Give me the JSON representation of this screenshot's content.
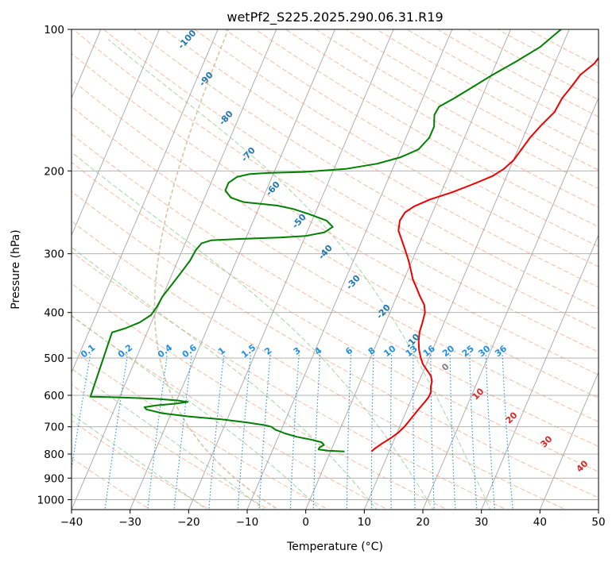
{
  "chart_data": {
    "type": "line",
    "title": "wetPf2_S225.2025.290.06.31.R19",
    "xlabel": "Temperature (°C)",
    "ylabel": "Pressure (hPa)",
    "xlim": [
      -40,
      50
    ],
    "ylim": [
      1050,
      100
    ],
    "y_scale": "log",
    "x_ticks": [
      -40,
      -30,
      -20,
      -10,
      0,
      10,
      20,
      30,
      40,
      50
    ],
    "x_tick_labels": [
      "−40",
      "−30",
      "−20",
      "−10",
      "0",
      "10",
      "20",
      "30",
      "40",
      "50"
    ],
    "y_ticks": [
      1000,
      900,
      800,
      700,
      600,
      500,
      400,
      300,
      200,
      100
    ],
    "y_tick_labels": [
      "1000",
      "900",
      "800",
      "700",
      "600",
      "500",
      "400",
      "300",
      "200",
      "100"
    ],
    "grid": true,
    "series": [
      {
        "role": "temperature",
        "color": "#ee0000",
        "points": [
          {
            "p": 790,
            "t": 7.0
          },
          {
            "p": 780,
            "t": 7.3
          },
          {
            "p": 760,
            "t": 8.2
          },
          {
            "p": 740,
            "t": 9.3
          },
          {
            "p": 720,
            "t": 10.2
          },
          {
            "p": 700,
            "t": 10.8
          },
          {
            "p": 680,
            "t": 11.2
          },
          {
            "p": 660,
            "t": 11.6
          },
          {
            "p": 640,
            "t": 12.0
          },
          {
            "p": 620,
            "t": 12.5
          },
          {
            "p": 605,
            "t": 12.8
          },
          {
            "p": 590,
            "t": 12.8
          },
          {
            "p": 575,
            "t": 12.4
          },
          {
            "p": 560,
            "t": 12.2
          },
          {
            "p": 545,
            "t": 11.6
          },
          {
            "p": 530,
            "t": 10.5
          },
          {
            "p": 515,
            "t": 9.4
          },
          {
            "p": 500,
            "t": 8.6
          },
          {
            "p": 480,
            "t": 7.7
          },
          {
            "p": 460,
            "t": 7.0
          },
          {
            "p": 440,
            "t": 6.5
          },
          {
            "p": 420,
            "t": 6.3
          },
          {
            "p": 400,
            "t": 6.0
          },
          {
            "p": 385,
            "t": 5.3
          },
          {
            "p": 370,
            "t": 4.0
          },
          {
            "p": 355,
            "t": 2.8
          },
          {
            "p": 340,
            "t": 1.5
          },
          {
            "p": 325,
            "t": 0.5
          },
          {
            "p": 310,
            "t": -0.6
          },
          {
            "p": 295,
            "t": -1.9
          },
          {
            "p": 280,
            "t": -3.3
          },
          {
            "p": 268,
            "t": -4.5
          },
          {
            "p": 255,
            "t": -5.0
          },
          {
            "p": 245,
            "t": -4.7
          },
          {
            "p": 238,
            "t": -3.6
          },
          {
            "p": 230,
            "t": -1.4
          },
          {
            "p": 222,
            "t": 1.9
          },
          {
            "p": 213,
            "t": 5.0
          },
          {
            "p": 205,
            "t": 7.6
          },
          {
            "p": 198,
            "t": 9.0
          },
          {
            "p": 190,
            "t": 10.0
          },
          {
            "p": 180,
            "t": 10.6
          },
          {
            "p": 170,
            "t": 11.2
          },
          {
            "p": 160,
            "t": 12.2
          },
          {
            "p": 150,
            "t": 13.5
          },
          {
            "p": 140,
            "t": 13.8
          },
          {
            "p": 132,
            "t": 14.6
          },
          {
            "p": 125,
            "t": 15.2
          },
          {
            "p": 118,
            "t": 16.8
          },
          {
            "p": 110,
            "t": 17.6
          },
          {
            "p": 103,
            "t": 18.3
          },
          {
            "p": 100,
            "t": 18.4
          }
        ]
      },
      {
        "role": "dewpoint",
        "color": "#008000",
        "points": [
          {
            "p": 790,
            "t": 2.4
          },
          {
            "p": 787,
            "t": -0.5
          },
          {
            "p": 782,
            "t": -2.2
          },
          {
            "p": 775,
            "t": -2.2
          },
          {
            "p": 765,
            "t": -1.6
          },
          {
            "p": 755,
            "t": -2.2
          },
          {
            "p": 745,
            "t": -4.3
          },
          {
            "p": 735,
            "t": -6.9
          },
          {
            "p": 723,
            "t": -9.1
          },
          {
            "p": 710,
            "t": -11.0
          },
          {
            "p": 700,
            "t": -11.9
          },
          {
            "p": 695,
            "t": -13.0
          },
          {
            "p": 685,
            "t": -16.5
          },
          {
            "p": 675,
            "t": -21.0
          },
          {
            "p": 665,
            "t": -27.0
          },
          {
            "p": 655,
            "t": -31.5
          },
          {
            "p": 643,
            "t": -34.5
          },
          {
            "p": 636,
            "t": -35.0
          },
          {
            "p": 630,
            "t": -33.0
          },
          {
            "p": 625,
            "t": -30.0
          },
          {
            "p": 620,
            "t": -28.0
          },
          {
            "p": 615,
            "t": -30.0
          },
          {
            "p": 610,
            "t": -34.0
          },
          {
            "p": 606,
            "t": -40.0
          },
          {
            "p": 604,
            "t": -45.0
          },
          {
            "p": 441,
            "t": -46.0
          },
          {
            "p": 432,
            "t": -44.0
          },
          {
            "p": 420,
            "t": -42.0
          },
          {
            "p": 405,
            "t": -40.6
          },
          {
            "p": 388,
            "t": -40.2
          },
          {
            "p": 370,
            "t": -40.0
          },
          {
            "p": 350,
            "t": -39.3
          },
          {
            "p": 330,
            "t": -38.6
          },
          {
            "p": 310,
            "t": -37.9
          },
          {
            "p": 295,
            "t": -37.7
          },
          {
            "p": 285,
            "t": -37.2
          },
          {
            "p": 281,
            "t": -35.8
          },
          {
            "p": 279,
            "t": -31.0
          },
          {
            "p": 277,
            "t": -24.0
          },
          {
            "p": 275,
            "t": -20.0
          },
          {
            "p": 270,
            "t": -17.0
          },
          {
            "p": 263,
            "t": -16.0
          },
          {
            "p": 255,
            "t": -17.5
          },
          {
            "p": 247,
            "t": -21.0
          },
          {
            "p": 241,
            "t": -24.0
          },
          {
            "p": 237,
            "t": -27.0
          },
          {
            "p": 235,
            "t": -30.0
          },
          {
            "p": 233,
            "t": -33.0
          },
          {
            "p": 228,
            "t": -35.5
          },
          {
            "p": 220,
            "t": -37.0
          },
          {
            "p": 212,
            "t": -37.0
          },
          {
            "p": 206,
            "t": -36.0
          },
          {
            "p": 203,
            "t": -34.0
          },
          {
            "p": 202,
            "t": -31.0
          },
          {
            "p": 201,
            "t": -25.0
          },
          {
            "p": 198,
            "t": -18.0
          },
          {
            "p": 193,
            "t": -13.0
          },
          {
            "p": 187,
            "t": -9.5
          },
          {
            "p": 180,
            "t": -7.0
          },
          {
            "p": 170,
            "t": -6.0
          },
          {
            "p": 161,
            "t": -6.0
          },
          {
            "p": 152,
            "t": -6.8
          },
          {
            "p": 146,
            "t": -6.6
          },
          {
            "p": 140,
            "t": -4.6
          },
          {
            "p": 133,
            "t": -2.4
          },
          {
            "p": 125,
            "t": 0.2
          },
          {
            "p": 117,
            "t": 3.3
          },
          {
            "p": 109,
            "t": 6.3
          },
          {
            "p": 103,
            "t": 7.8
          },
          {
            "p": 100,
            "t": 8.6
          }
        ]
      }
    ],
    "reference_lines": {
      "skew": 35,
      "dry_adiabats_theta_C": [
        -30,
        -20,
        -10,
        0,
        10,
        20,
        30,
        40,
        50,
        60,
        70,
        80,
        90,
        100,
        110,
        120,
        130,
        140,
        150,
        160,
        170,
        180,
        190,
        200,
        210,
        220,
        230,
        240,
        250,
        260
      ],
      "moist_adiabats_C": [
        -20,
        -10,
        0,
        10,
        20,
        30
      ],
      "mixing_ratio_lines": {
        "values": [
          0.1,
          0.2,
          0.4,
          0.6,
          1,
          1.5,
          2,
          3,
          4,
          6,
          8,
          10,
          13,
          16,
          20,
          25,
          30,
          36
        ],
        "labels": [
          "0.1",
          "0.2",
          "0.4",
          "0.6",
          "1",
          "1.5",
          "2",
          "3",
          "4",
          "6",
          "8",
          "10",
          "13",
          "16",
          "20",
          "25",
          "30",
          "36"
        ],
        "color": "#1f8fe6"
      },
      "isotherm_labels": {
        "values": [
          -100,
          -90,
          -80,
          -70,
          -60,
          -50,
          -40,
          -30,
          -20,
          -10
        ],
        "labels": [
          "-100",
          "-90",
          "-80",
          "-70",
          "-60",
          "-50",
          "-40",
          "-30",
          "-20",
          "-10"
        ],
        "color": "#1f77b4"
      },
      "wetbulb_labels": {
        "values": [
          0,
          10,
          20,
          30,
          40
        ],
        "labels": [
          "0",
          "10",
          "20",
          "30",
          "40"
        ],
        "zero_color": "#808080",
        "color": "#d62728"
      }
    },
    "colors": {
      "dry_adiabat": "#f4a582",
      "moist_adiabat": "#90c990",
      "isotherm_grid": "#a6a6a6",
      "isobar_grid": "#a6a6a6",
      "accent_curve": "#d2b48c"
    }
  }
}
